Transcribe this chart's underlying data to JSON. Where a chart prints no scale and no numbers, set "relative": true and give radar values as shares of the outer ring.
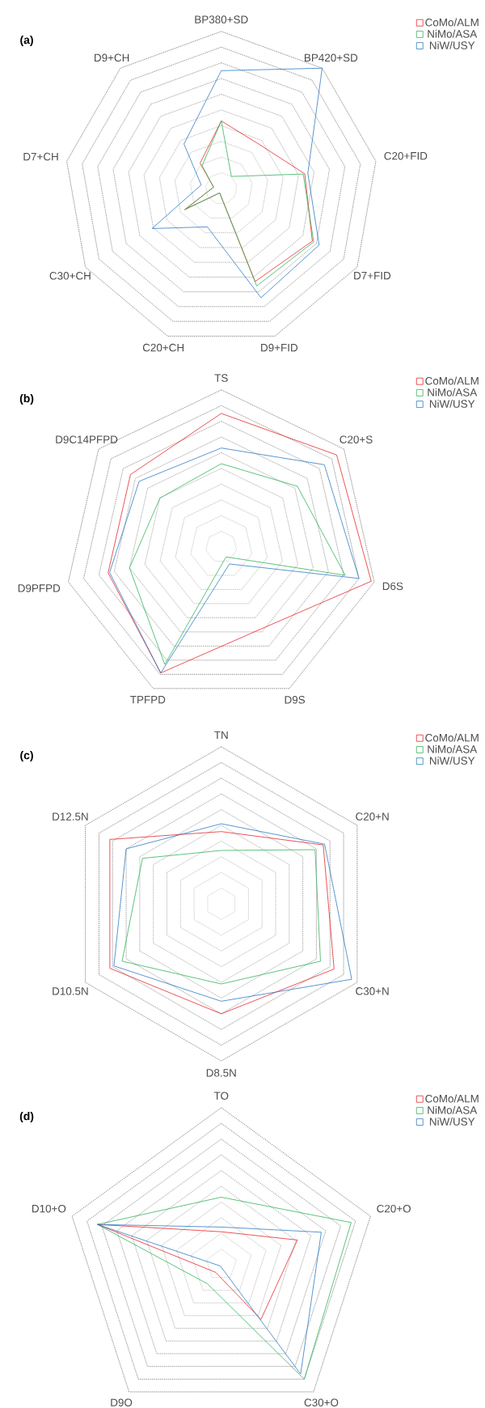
{
  "chart_data": [
    {
      "type": "radar",
      "title": "(a)",
      "relative": true,
      "grid": true,
      "legend": "top right",
      "categories": [
        "BP380+SD",
        "BP420+SD",
        "C20+FID",
        "D7+FID",
        "D9+FID",
        "C20+CH",
        "C30+CH",
        "D7+CH",
        "D9+CH"
      ],
      "series": [
        {
          "name": "CoMo/ALM",
          "color": "#e8262a",
          "values": [
            0.43,
            0.37,
            0.54,
            0.67,
            0.63,
            0.03,
            0.27,
            0.05,
            0.21
          ]
        },
        {
          "name": "NiMo/ASA",
          "color": "#33b35a",
          "values": [
            0.43,
            0.1,
            0.53,
            0.68,
            0.66,
            0.03,
            0.26,
            0.05,
            0.19
          ]
        },
        {
          "name": "NiW/USY",
          "color": "#2c7bc5",
          "values": [
            0.75,
            1.0,
            0.56,
            0.72,
            0.74,
            0.26,
            0.51,
            0.13,
            0.37
          ]
        }
      ]
    },
    {
      "type": "radar",
      "title": "(b)",
      "relative": true,
      "grid": true,
      "legend": "top right",
      "categories": [
        "TS",
        "C20+S",
        "D6S",
        "D9S",
        "TPFPD",
        "D9PFPD",
        "D9C14PFPD"
      ],
      "series": [
        {
          "name": "CoMo/ALM",
          "color": "#e8262a",
          "values": [
            0.85,
            0.94,
            0.98,
            0.58,
            0.89,
            0.74,
            0.74
          ]
        },
        {
          "name": "NiMo/ASA",
          "color": "#33b35a",
          "values": [
            0.53,
            0.62,
            0.81,
            0.07,
            0.83,
            0.6,
            0.5
          ]
        },
        {
          "name": "NiW/USY",
          "color": "#2c7bc5",
          "values": [
            0.63,
            0.84,
            0.9,
            0.12,
            0.89,
            0.73,
            0.67
          ]
        }
      ]
    },
    {
      "type": "radar",
      "title": "(c)",
      "relative": true,
      "grid": true,
      "legend": "top right",
      "categories": [
        "TN",
        "C20+N",
        "C30+N",
        "D8.5N",
        "D10.5N",
        "D12.5N"
      ],
      "series": [
        {
          "name": "CoMo/ALM",
          "color": "#e8262a",
          "values": [
            0.46,
            0.75,
            0.83,
            0.7,
            0.82,
            0.82
          ]
        },
        {
          "name": "NiMo/ASA",
          "color": "#33b35a",
          "values": [
            0.34,
            0.69,
            0.73,
            0.51,
            0.73,
            0.58
          ]
        },
        {
          "name": "NiW/USY",
          "color": "#2c7bc5",
          "values": [
            0.51,
            0.76,
            0.96,
            0.62,
            0.79,
            0.7
          ]
        }
      ]
    },
    {
      "type": "radar",
      "title": "(d)",
      "relative": true,
      "grid": true,
      "legend": "top right",
      "categories": [
        "TO",
        "C20+O",
        "C30+O",
        "D9O",
        "D10+O"
      ],
      "series": [
        {
          "name": "CoMo/ALM",
          "color": "#e8262a",
          "values": [
            0.21,
            0.51,
            0.43,
            0.06,
            0.83
          ]
        },
        {
          "name": "NiMo/ASA",
          "color": "#33b35a",
          "values": [
            0.43,
            0.87,
            0.9,
            0.15,
            0.83
          ]
        },
        {
          "name": "NiW/USY",
          "color": "#2c7bc5",
          "values": [
            0.24,
            0.67,
            0.86,
            0.01,
            0.83
          ]
        }
      ]
    }
  ]
}
